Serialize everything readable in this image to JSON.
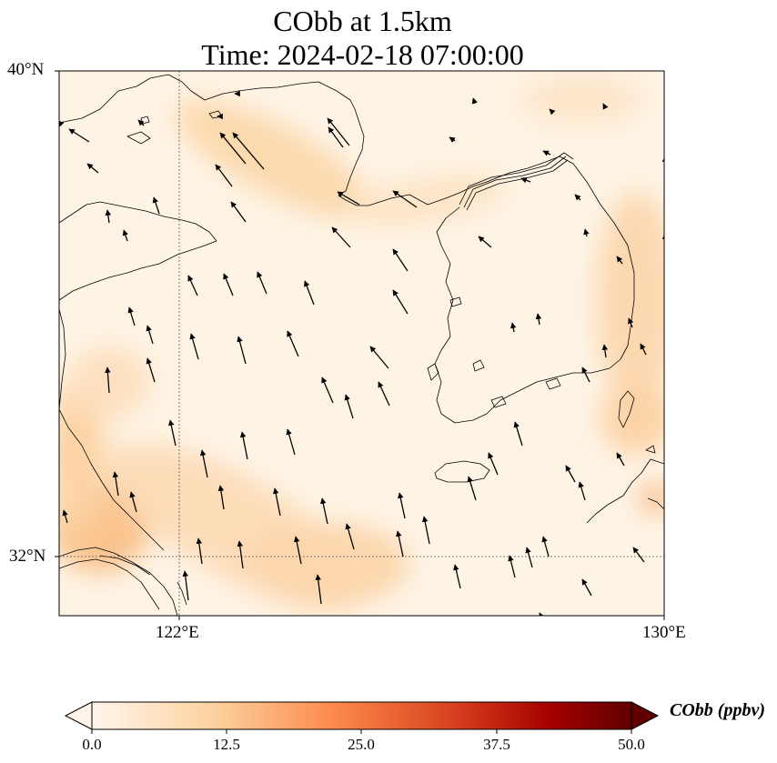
{
  "title": {
    "line1": "CObb at 1.5km",
    "line2": "Time: 2024-02-18 07:00:00"
  },
  "axes": {
    "lat_labels": [
      "40°N",
      "32°N"
    ],
    "lon_labels": [
      "122°E",
      "130°E"
    ],
    "lat_range": [
      31,
      40
    ],
    "lon_range": [
      120.4,
      130
    ],
    "gridlines": {
      "lat": 32,
      "lon": 122,
      "style": "dotted"
    }
  },
  "colorbar": {
    "label": "CObb (ppbv)",
    "ticks": [
      "0.0",
      "12.5",
      "25.0",
      "37.5",
      "50.0"
    ],
    "range": [
      0,
      50
    ],
    "extend": "both",
    "colormap": "Oranges-to-dark-red",
    "colors": [
      "#fff5eb",
      "#fdd3a0",
      "#fb8a4a",
      "#d63d1d",
      "#a50000",
      "#600000"
    ]
  },
  "field": {
    "variable": "CObb",
    "level": "1.5km",
    "typical_value_range_ppbv": [
      0,
      14
    ],
    "background_color": "#fef4e6"
  },
  "wind": {
    "vector_color": "#000000",
    "dominant_direction": "north-northwest"
  }
}
